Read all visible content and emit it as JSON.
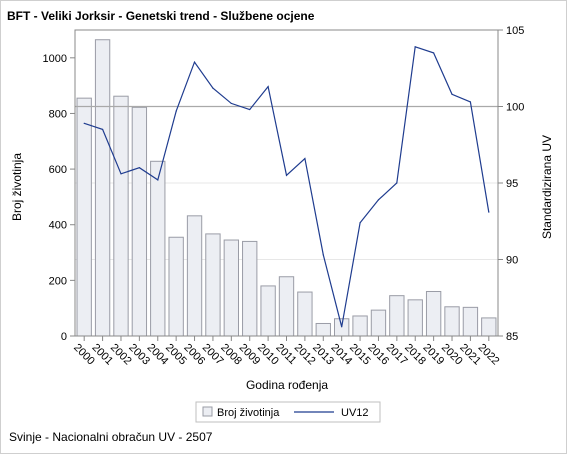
{
  "title": "BFT - Veliki Jorksir - Genetski trend - Službene ocjene",
  "footer": "Svinje - Nacionalni obračun UV - 2507",
  "colors": {
    "bar_fill": "#eceef3",
    "bar_stroke": "#9a9ca6",
    "line": "#1f3c8f",
    "refline": "#a9a9a9",
    "grid": "#e7e7e7",
    "axis": "#888888"
  },
  "chart_data": {
    "type": "bar+line",
    "xlabel": "Godina rođenja",
    "ylabel_left": "Broj životinja",
    "ylabel_right": "Standardizirana UV",
    "ylim_left": [
      0,
      1100
    ],
    "ylim_right": [
      85,
      105
    ],
    "yticks_left": [
      0,
      200,
      400,
      600,
      800,
      1000
    ],
    "yticks_right": [
      85,
      90,
      95,
      100,
      105
    ],
    "reference_line_right": 100,
    "categories": [
      "2000",
      "2001",
      "2002",
      "2003",
      "2004",
      "2005",
      "2006",
      "2007",
      "2008",
      "2009",
      "2010",
      "2011",
      "2012",
      "2013",
      "2014",
      "2015",
      "2016",
      "2017",
      "2018",
      "2019",
      "2020",
      "2021",
      "2022"
    ],
    "series": [
      {
        "name": "Broj životinja",
        "type": "bar",
        "axis": "left",
        "values": [
          855,
          1065,
          862,
          822,
          628,
          355,
          432,
          367,
          345,
          340,
          180,
          213,
          158,
          45,
          62,
          72,
          93,
          145,
          130,
          160,
          105,
          103,
          65
        ]
      },
      {
        "name": "UV12",
        "type": "line",
        "axis": "right",
        "values": [
          98.9,
          98.5,
          95.6,
          96.0,
          95.2,
          99.7,
          102.9,
          101.2,
          100.2,
          99.8,
          101.3,
          95.5,
          96.6,
          90.3,
          85.6,
          92.4,
          93.9,
          95.0,
          103.9,
          103.5,
          100.8,
          100.3,
          93.1
        ]
      }
    ],
    "legend": {
      "position": "bottom",
      "items": [
        "Broj životinja",
        "UV12"
      ]
    },
    "grid": "horizontal"
  }
}
